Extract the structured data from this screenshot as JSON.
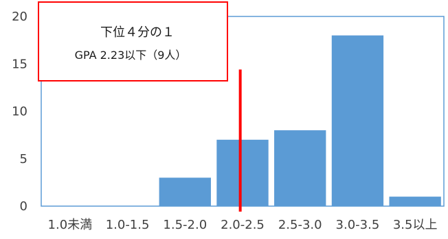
{
  "chart_data": {
    "type": "bar",
    "categories": [
      "1.0未満",
      "1.0-1.5",
      "1.5-2.0",
      "2.0-2.5",
      "2.5-3.0",
      "3.0-3.5",
      "3.5以上"
    ],
    "values": [
      0,
      0,
      3,
      7,
      8,
      18,
      1
    ],
    "ylim": [
      0,
      20
    ],
    "yticks": [
      0,
      5,
      10,
      15,
      20
    ],
    "grid": false,
    "colors": {
      "bar": "#5b9bd5",
      "axis": "#5b9bd5",
      "marker": "#ff0000",
      "annotation_border": "#ff0000"
    },
    "marker_line": {
      "x": 2.23,
      "y_top": 14.4
    },
    "annotation": {
      "line1": "下位４分の１",
      "line2": "GPA 2.23以下（9人）"
    }
  }
}
